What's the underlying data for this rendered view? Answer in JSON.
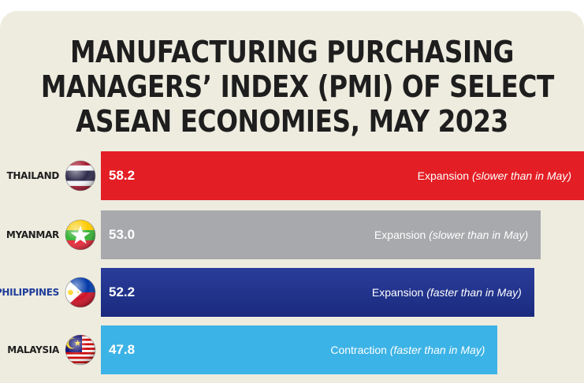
{
  "title_lines": [
    "MANUFACTURING PURCHASING",
    "MANAGERS’ INDEX (PMI) OF SELECT",
    "ASEAN ECONOMIES, MAY 2023"
  ],
  "colors": {
    "background": "#eeecdf",
    "title": "#1e1e1e",
    "thailand_bar": "#e31e24",
    "myanmar_bar": "#a7a9ac",
    "philippines_bar_top": "#2a3d9a",
    "philippines_bar_bottom": "#1a2a7e",
    "malaysia_bar": "#3cb3e6",
    "philippines_label": "#1f3d99",
    "default_label": "#1e1e1e"
  },
  "chart_data": {
    "type": "bar",
    "orientation": "horizontal",
    "title": "MANUFACTURING PURCHASING MANAGERS’ INDEX (PMI) OF SELECT ASEAN ECONOMIES, MAY 2023",
    "categories": [
      "THAILAND",
      "MYANMAR",
      "PHILIPPINES",
      "MALAYSIA"
    ],
    "values": [
      58.2,
      53.0,
      52.2,
      47.8
    ],
    "value_labels": [
      "58.2",
      "53.0",
      "52.2",
      "47.8"
    ],
    "annotations": [
      {
        "main": "Expansion",
        "note": "(slower than in May)"
      },
      {
        "main": "Expansion",
        "note": "(slower than in May)"
      },
      {
        "main": "Expansion",
        "note": "(faster than in May)"
      },
      {
        "main": "Contraction",
        "note": "(faster than in May)"
      }
    ],
    "flag_icons": [
      "thailand-flag-icon",
      "myanmar-flag-icon",
      "philippines-flag-icon",
      "malaysia-flag-icon"
    ],
    "bar_colors": [
      "#e31e24",
      "#a7a9ac",
      "#1f3191",
      "#3cb3e6"
    ],
    "label_colors": [
      "#1e1e1e",
      "#1e1e1e",
      "#1f3d99",
      "#1e1e1e"
    ],
    "xlim": [
      0,
      58.2
    ],
    "grid": false,
    "legend": "none"
  }
}
